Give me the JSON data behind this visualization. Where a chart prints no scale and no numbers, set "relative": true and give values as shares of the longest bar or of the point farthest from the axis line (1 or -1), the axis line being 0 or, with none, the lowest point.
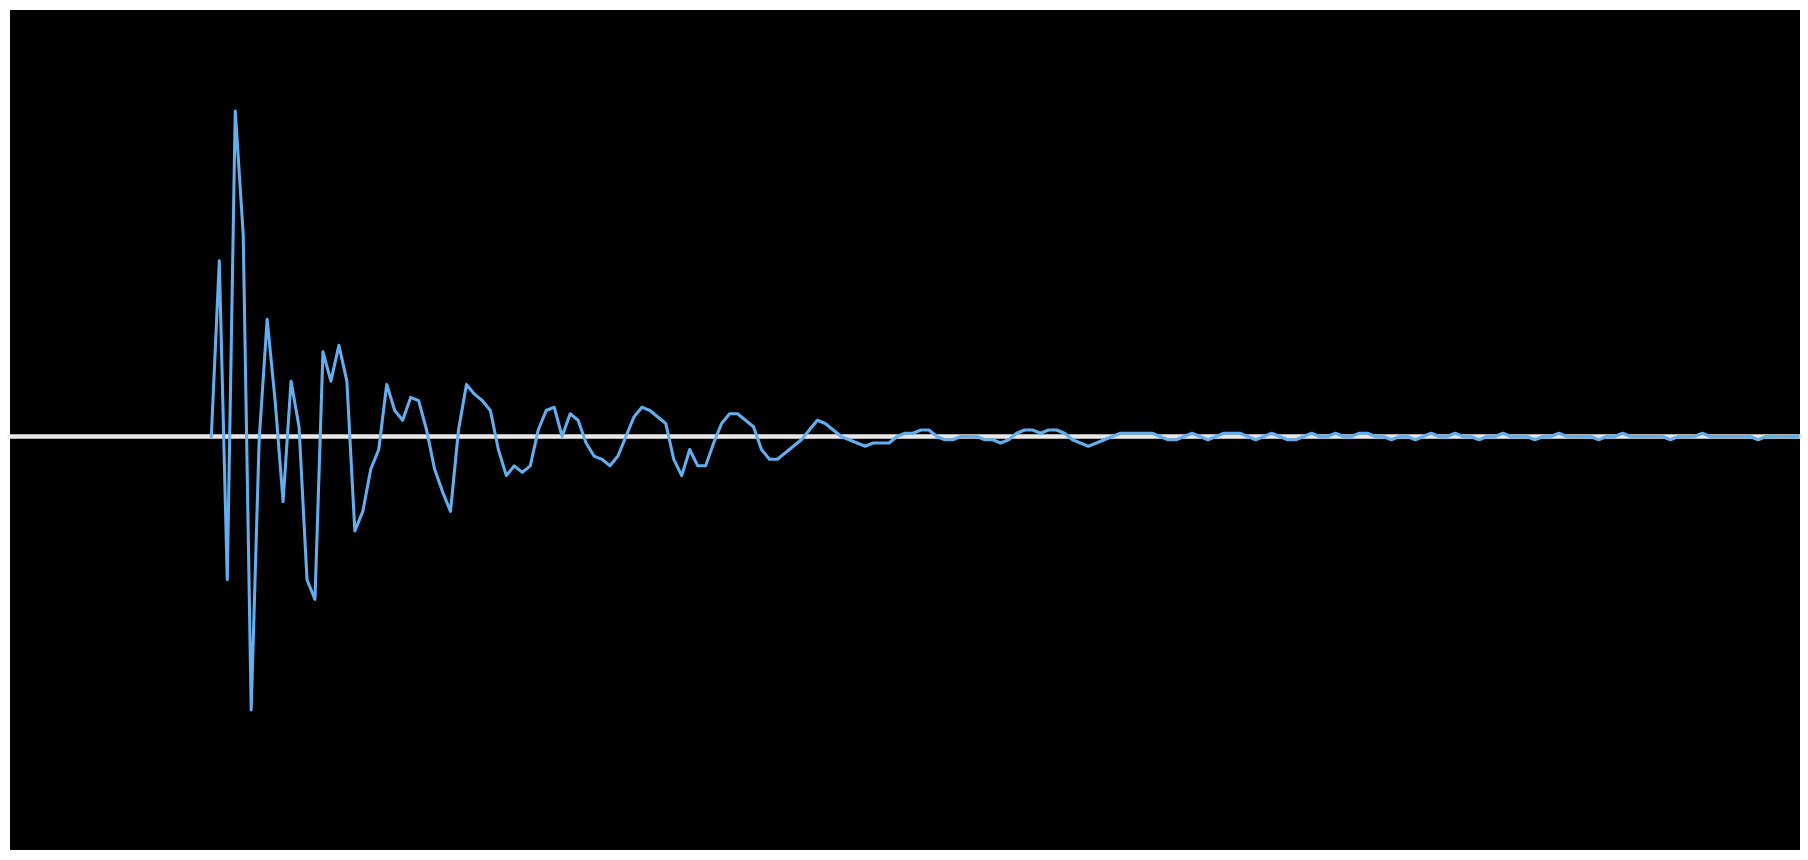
{
  "chart_data": {
    "type": "line",
    "relative": true,
    "categories": [
      null,
      null,
      null,
      null,
      null,
      null,
      null,
      null,
      null,
      null,
      null,
      null,
      null,
      null,
      null,
      null,
      null,
      null,
      null,
      null,
      null,
      null,
      null,
      null,
      null,
      null,
      null,
      null,
      null,
      null,
      null,
      null,
      null,
      null,
      null,
      null,
      null,
      null,
      null,
      null,
      null,
      null,
      null,
      null,
      null,
      null,
      null,
      null,
      null,
      null,
      null,
      null,
      null,
      null,
      null,
      null,
      null,
      null,
      null,
      null,
      null,
      null,
      null,
      null,
      null,
      null,
      null,
      null,
      null,
      null,
      null,
      null,
      null,
      null,
      null,
      null,
      null,
      null,
      null,
      null,
      null,
      null,
      null,
      null,
      null,
      null,
      null,
      null,
      null,
      null,
      null,
      null,
      null,
      null,
      null,
      null,
      null,
      null,
      null,
      null,
      null,
      null,
      null,
      null,
      null,
      null,
      null,
      null,
      null,
      null,
      null,
      null,
      null,
      null,
      null,
      null,
      null,
      null,
      null,
      null,
      null,
      null,
      null,
      null,
      null,
      null,
      null,
      null,
      null,
      null,
      null,
      null,
      null,
      null,
      null,
      null,
      null,
      null,
      null,
      null,
      null,
      null,
      null,
      null,
      null,
      null,
      null,
      null,
      null,
      null,
      null,
      null,
      null,
      null,
      null,
      null,
      null,
      null,
      null,
      null,
      null,
      null,
      null,
      null,
      null,
      null,
      null,
      null,
      null,
      null,
      null,
      null,
      null,
      null,
      null,
      null,
      null,
      null,
      null,
      null,
      null,
      null,
      null,
      null,
      null,
      null,
      null,
      null,
      null,
      null,
      null,
      null,
      null,
      null,
      null,
      null,
      null,
      null,
      null,
      null,
      null,
      null,
      null,
      null,
      null,
      null,
      null,
      null,
      null,
      null,
      null,
      null,
      null,
      null,
      null,
      null,
      null,
      null,
      null,
      null,
      null,
      null,
      null,
      null,
      null
    ],
    "series": [
      {
        "color": "#62aeee",
        "values": [
          null,
          null,
          null,
          null,
          null,
          null,
          null,
          null,
          null,
          null,
          null,
          null,
          null,
          null,
          null,
          null,
          null,
          null,
          null,
          null,
          null,
          null,
          null,
          null,
          null,
          0,
          0.54,
          -0.44,
          1,
          0.62,
          -0.84,
          -0.01,
          0.36,
          0.11,
          -0.2,
          0.17,
          0.03,
          -0.44,
          -0.5,
          0.26,
          0.17,
          0.28,
          0.17,
          -0.29,
          -0.23,
          -0.1,
          -0.04,
          0.16,
          0.08,
          0.05,
          0.12,
          0.11,
          0.02,
          -0.1,
          -0.17,
          -0.23,
          0.02,
          0.16,
          0.13,
          0.11,
          0.08,
          -0.04,
          -0.12,
          -0.09,
          -0.11,
          -0.09,
          0.02,
          0.08,
          0.09,
          0,
          0.07,
          0.05,
          -0.02,
          -0.06,
          -0.07,
          -0.09,
          -0.06,
          0,
          0.06,
          0.09,
          0.08,
          0.06,
          0.04,
          -0.07,
          -0.12,
          -0.04,
          -0.09,
          -0.09,
          -0.02,
          0.04,
          0.07,
          0.07,
          0.05,
          0.03,
          -0.04,
          -0.07,
          -0.07,
          -0.05,
          -0.03,
          -0.01,
          0.02,
          0.05,
          0.04,
          0.02,
          0,
          -0.01,
          -0.02,
          -0.03,
          -0.02,
          -0.02,
          -0.02,
          0,
          0.01,
          0.01,
          0.02,
          0.02,
          0,
          -0.01,
          -0.01,
          0,
          0,
          0,
          -0.01,
          -0.01,
          -0.02,
          -0.01,
          0.01,
          0.02,
          0.02,
          0.01,
          0.02,
          0.02,
          0.01,
          -0.01,
          -0.02,
          -0.03,
          -0.02,
          -0.01,
          0,
          0.01,
          0.01,
          0.01,
          0.01,
          0.01,
          0,
          -0.01,
          -0.01,
          0,
          0.01,
          0,
          -0.01,
          0,
          0.01,
          0.01,
          0.01,
          0,
          -0.01,
          0,
          0.01,
          0,
          -0.01,
          -0.01,
          0,
          0.01,
          0,
          0,
          0.01,
          0,
          0,
          0.01,
          0.01,
          0,
          0,
          -0.01,
          0,
          0,
          -0.01,
          0,
          0.01,
          0,
          0,
          0.01,
          0,
          0,
          -0.01,
          0,
          0,
          0.01,
          0,
          0,
          0,
          -0.01,
          0,
          0,
          0.01,
          0,
          0,
          0,
          0,
          -0.01,
          0,
          0,
          0.01,
          0,
          0,
          0,
          0,
          0,
          -0.01,
          0,
          0,
          0,
          0.01,
          0,
          0,
          0,
          0,
          0,
          0,
          -0.01,
          0,
          0,
          0,
          0,
          0
        ]
      }
    ]
  }
}
